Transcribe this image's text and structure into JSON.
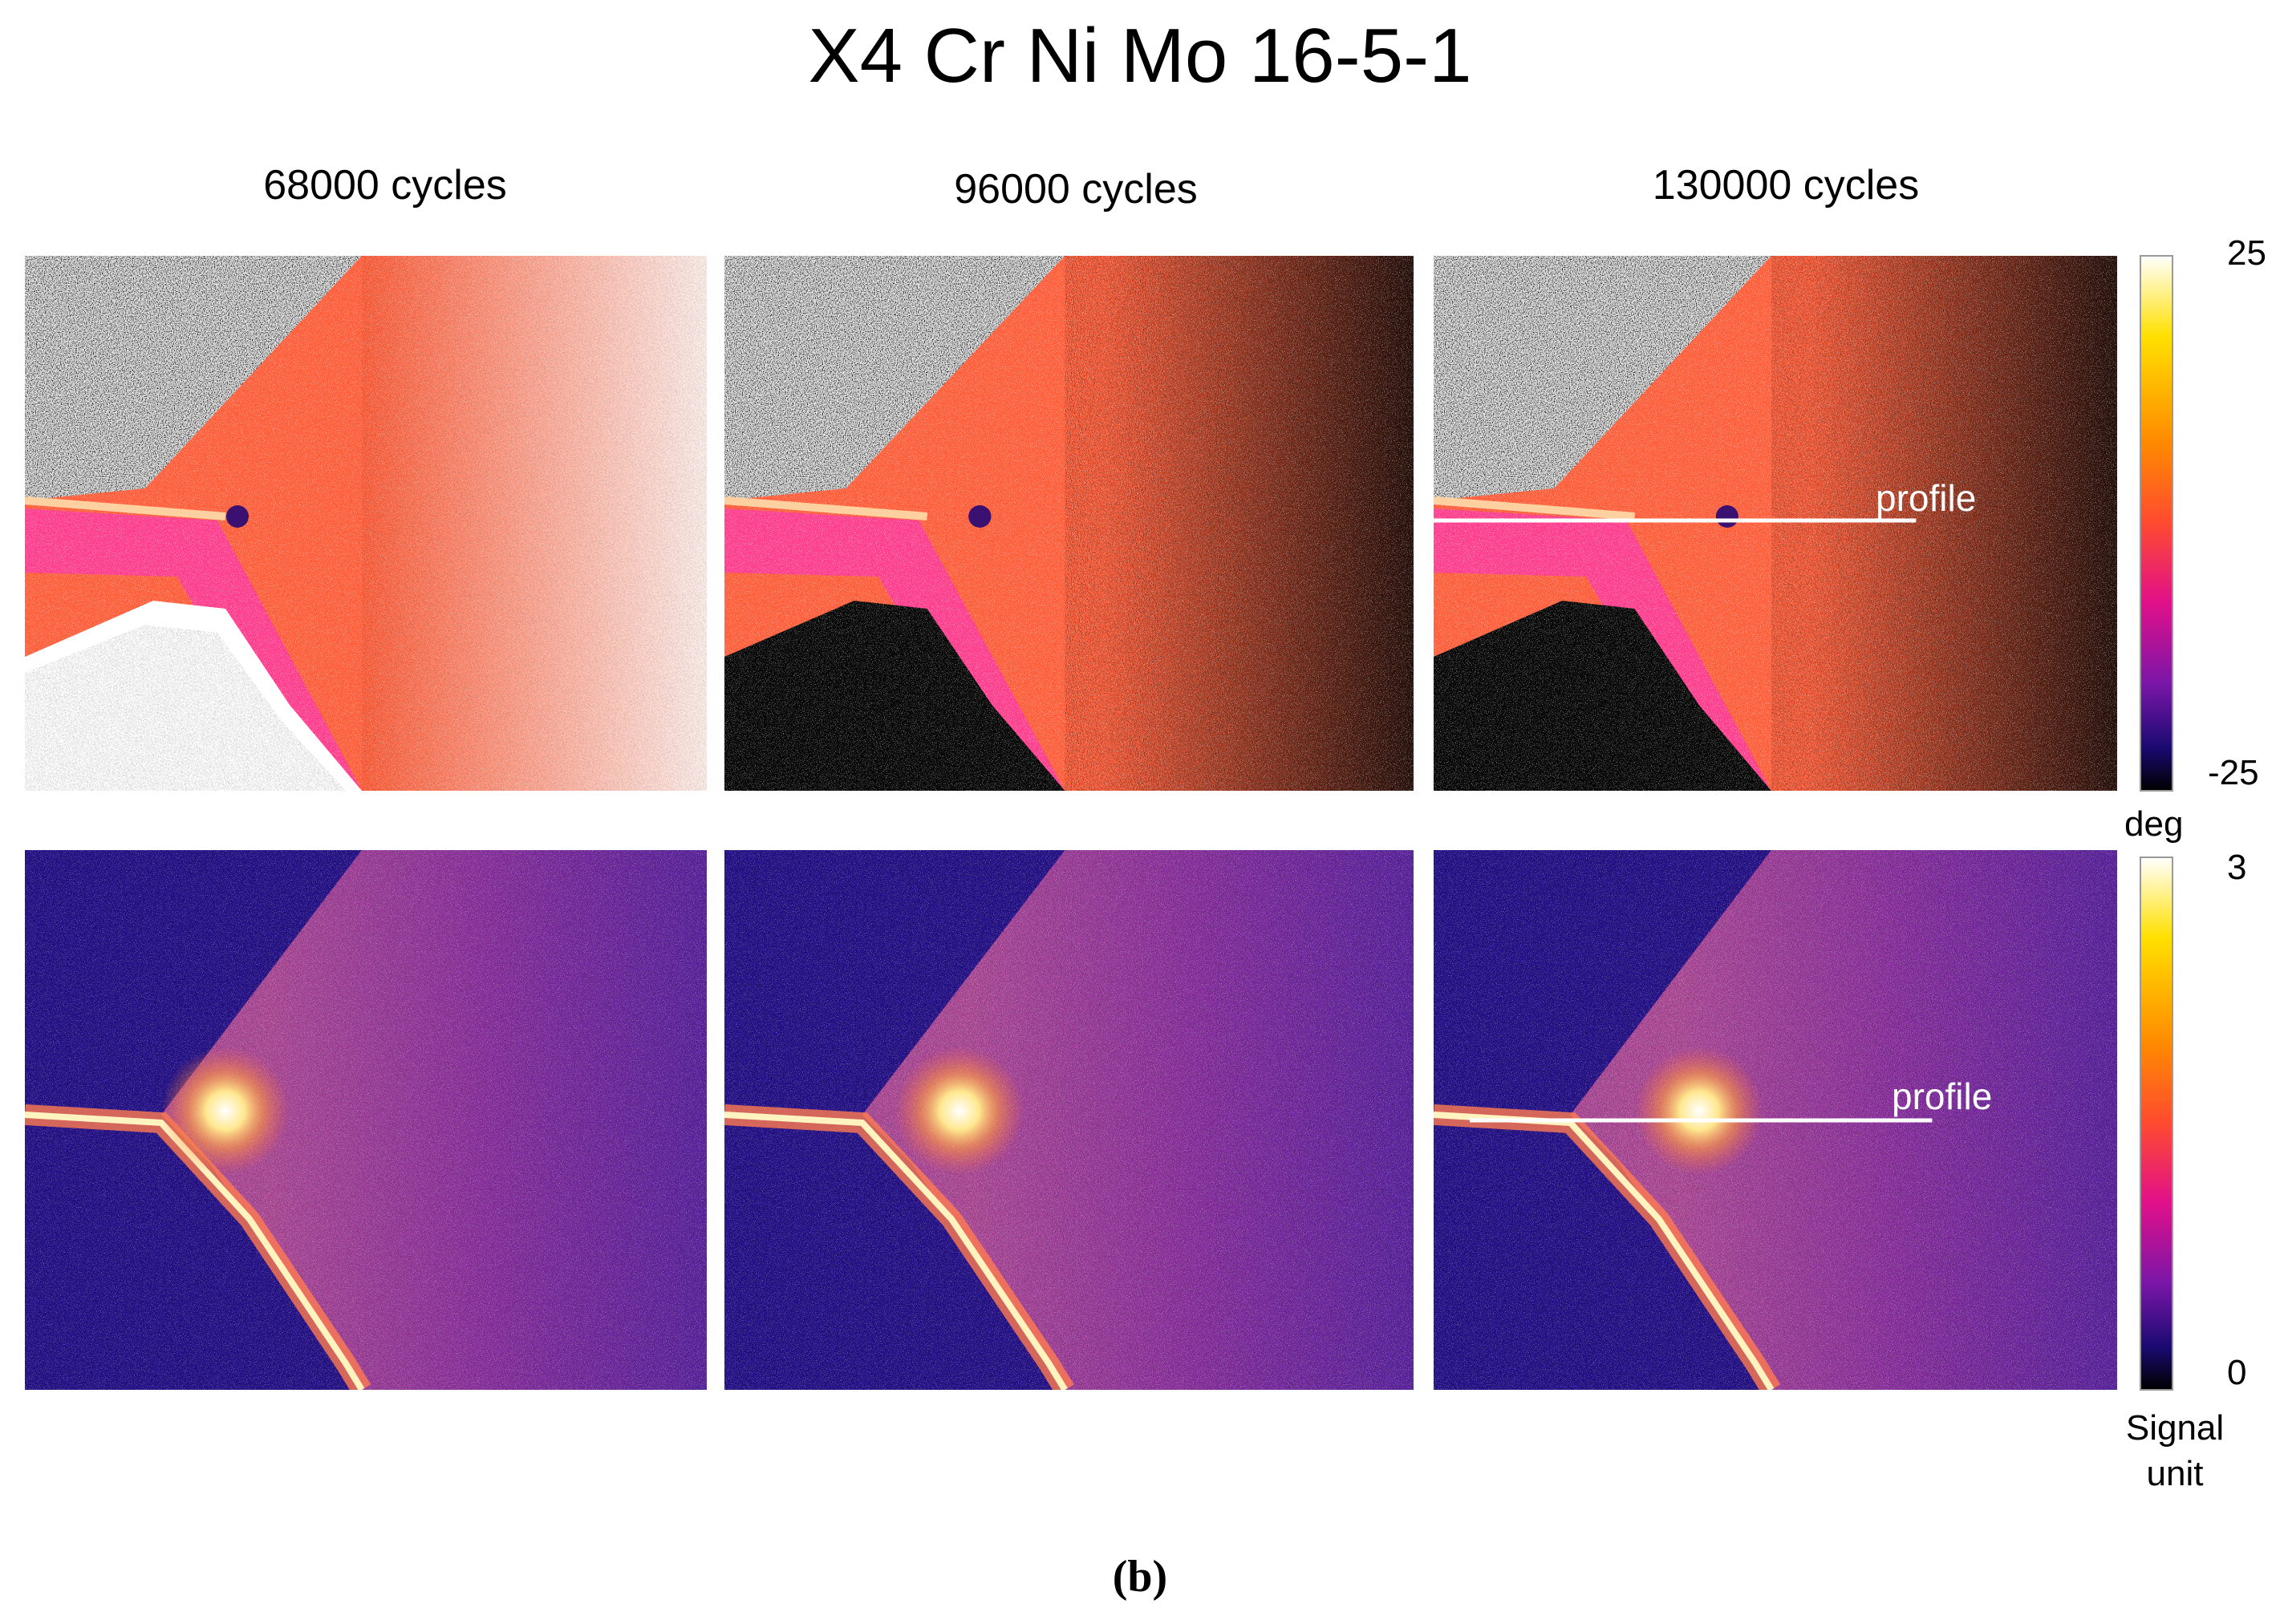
{
  "title": "X4 Cr Ni Mo 16-5-1",
  "columns": [
    "68000 cycles",
    "96000 cycles",
    "130000 cycles"
  ],
  "colorbars": [
    {
      "max": 25,
      "min": -25,
      "unit": "deg"
    },
    {
      "max": 3,
      "min": 0,
      "unit": "Signal unit"
    }
  ],
  "annotations": [
    "profile",
    "profile"
  ],
  "caption": "(b)"
}
